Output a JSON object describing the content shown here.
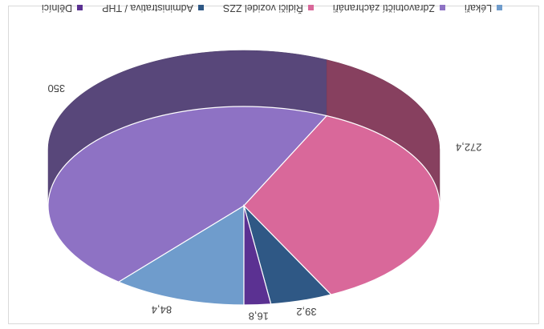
{
  "chart_data": {
    "type": "pie",
    "style": "3d",
    "categories": [
      "Lékaři",
      "Zdravotničtí záchranáři",
      "Řidiči vozidel ZZS",
      "Administrativa / THP",
      "Dělníci"
    ],
    "values": [
      84.4,
      350,
      272.4,
      39.2,
      16.8
    ],
    "data_labels": [
      "84,4",
      "350",
      "272,4",
      "39,2",
      "16,8"
    ],
    "colors": [
      "#6f9ccc",
      "#8e72c4",
      "#d9689a",
      "#2f5885",
      "#5b3192"
    ],
    "legend_position": "bottom",
    "title": "",
    "orientation_note": "image is shown rotated 180 degrees"
  },
  "legend": {
    "items": [
      "Lékaři",
      "Zdravotničtí záchranáři",
      "Řidiči vozidel ZZS",
      "Administrativa / THP",
      "Dělníci"
    ]
  }
}
